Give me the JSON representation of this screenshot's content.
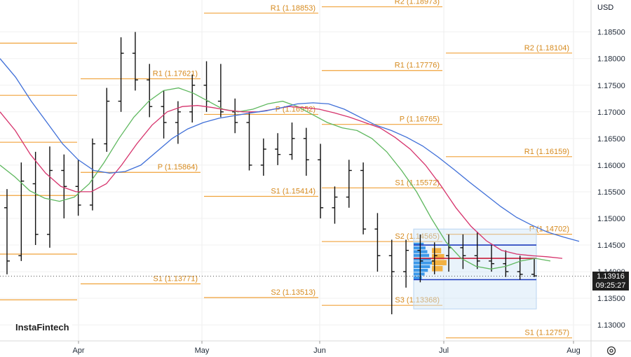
{
  "header": {
    "currency": "USD"
  },
  "watermark": "InstaFintech",
  "price_tag": {
    "price": "1.13916",
    "time": "09:25:27"
  },
  "colors": {
    "pivot": "#f0a23a",
    "pivot_text": "#d68a1e",
    "ma_fast": "#5fb85f",
    "ma_mid": "#d6336c",
    "ma_slow": "#3f6fd8",
    "bars": "#111111",
    "profile": "#1e88e5",
    "profile_poc": "#f5a623",
    "range_box": "#cfe4f7"
  },
  "chart_data": {
    "type": "ohlc",
    "x_axis": {
      "labels": [
        "Apr",
        "May",
        "Jun",
        "Jul",
        "Aug"
      ]
    },
    "y_axis": {
      "range": [
        1.127,
        1.191
      ],
      "ticks": [
        "1.18500",
        "1.18000",
        "1.17500",
        "1.17000",
        "1.16500",
        "1.16000",
        "1.15500",
        "1.15000",
        "1.14500",
        "1.14000",
        "1.13500",
        "1.13000"
      ],
      "tick_values": [
        1.185,
        1.18,
        1.175,
        1.17,
        1.165,
        1.16,
        1.155,
        1.15,
        1.145,
        1.14,
        1.135,
        1.13
      ]
    },
    "last_price": 1.13916,
    "pivot_levels": [
      {
        "period": "Mar",
        "segments": [
          {
            "label": "",
            "value": 1.1829
          },
          {
            "label": "",
            "value": 1.1731
          },
          {
            "label": "",
            "value": 1.1643
          },
          {
            "label": "",
            "value": 1.1543
          },
          {
            "label": "",
            "value": 1.1433
          },
          {
            "label": "",
            "value": 1.1347
          }
        ]
      },
      {
        "period": "Apr",
        "segments": [
          {
            "label": "R1 (1.17621)",
            "value": 1.17621
          },
          {
            "label": "P (1.15864)",
            "value": 1.15864
          },
          {
            "label": "S1 (1.13771)",
            "value": 1.13771
          }
        ]
      },
      {
        "period": "May",
        "segments": [
          {
            "label": "R1 (1.18853)",
            "value": 1.18853
          },
          {
            "label": "P (1.16952)",
            "value": 1.16952
          },
          {
            "label": "S1 (1.15414)",
            "value": 1.15414
          },
          {
            "label": "S2 (1.13513)",
            "value": 1.13513
          }
        ]
      },
      {
        "period": "Jun",
        "segments": [
          {
            "label": "R2 (1.18973)",
            "value": 1.18973
          },
          {
            "label": "R1 (1.17776)",
            "value": 1.17776
          },
          {
            "label": "P (1.16765)",
            "value": 1.16765
          },
          {
            "label": "S1 (1.15572)",
            "value": 1.15572
          },
          {
            "label": "S2 (1.14565)",
            "value": 1.14565
          },
          {
            "label": "S3 (1.13368)",
            "value": 1.13368
          }
        ]
      },
      {
        "period": "Jul",
        "segments": [
          {
            "label": "R2 (1.18104)",
            "value": 1.18104
          },
          {
            "label": "R1 (1.16159)",
            "value": 1.16159
          },
          {
            "label": "P (1.14702)",
            "value": 1.14702
          },
          {
            "label": "S1 (1.12757)",
            "value": 1.12757
          }
        ]
      }
    ],
    "series": [
      {
        "values": [
          1.16,
          1.1578,
          1.1552,
          1.1538,
          1.1532,
          1.154,
          1.1565,
          1.1605,
          1.165,
          1.169,
          1.172,
          1.174,
          1.1745,
          1.1735,
          1.172,
          1.1705,
          1.17,
          1.1705,
          1.1715,
          1.172,
          1.171,
          1.1695,
          1.168,
          1.167,
          1.1665,
          1.165,
          1.1625,
          1.159,
          1.155,
          1.15,
          1.1455,
          1.1425,
          1.141,
          1.1405,
          1.141,
          1.142,
          1.1425,
          1.142
        ]
      },
      {
        "values": [
          1.17,
          1.1665,
          1.162,
          1.1585,
          1.156,
          1.155,
          1.155,
          1.1565,
          1.16,
          1.164,
          1.1675,
          1.17,
          1.171,
          1.1712,
          1.1708,
          1.1703,
          1.17,
          1.17,
          1.1705,
          1.171,
          1.1708,
          1.1705,
          1.1698,
          1.169,
          1.168,
          1.167,
          1.1652,
          1.163,
          1.16,
          1.1562,
          1.152,
          1.1485,
          1.1458,
          1.144,
          1.1433,
          1.143,
          1.1428,
          1.1425
        ]
      },
      {
        "values": [
          1.18,
          1.1765,
          1.172,
          1.168,
          1.164,
          1.161,
          1.159,
          1.1585,
          1.1588,
          1.16,
          1.1625,
          1.165,
          1.1668,
          1.168,
          1.1688,
          1.1693,
          1.1698,
          1.1702,
          1.1708,
          1.1715,
          1.1717,
          1.1715,
          1.1705,
          1.169,
          1.1675,
          1.1665,
          1.1652,
          1.1636,
          1.1615,
          1.1592,
          1.1568,
          1.1545,
          1.1522,
          1.1502,
          1.1487,
          1.1474,
          1.1465,
          1.1457
        ]
      }
    ],
    "ohlc_weeks": [
      [
        1.152,
        1.1555,
        1.1395,
        1.142
      ],
      [
        1.143,
        1.1605,
        1.142,
        1.157
      ],
      [
        1.1565,
        1.1625,
        1.145,
        1.147
      ],
      [
        1.147,
        1.1635,
        1.1445,
        1.159
      ],
      [
        1.159,
        1.162,
        1.15,
        1.156
      ],
      [
        1.156,
        1.161,
        1.1505,
        1.1525
      ],
      [
        1.1525,
        1.165,
        1.1515,
        1.164
      ],
      [
        1.164,
        1.1745,
        1.1625,
        1.172
      ],
      [
        1.172,
        1.184,
        1.17,
        1.181
      ],
      [
        1.181,
        1.185,
        1.174,
        1.176
      ],
      [
        1.176,
        1.179,
        1.169,
        1.171
      ],
      [
        1.171,
        1.174,
        1.165,
        1.168
      ],
      [
        1.168,
        1.172,
        1.164,
        1.17
      ],
      [
        1.17,
        1.177,
        1.168,
        1.175
      ],
      [
        1.175,
        1.1795,
        1.17,
        1.172
      ],
      [
        1.172,
        1.179,
        1.169,
        1.17
      ],
      [
        1.17,
        1.1725,
        1.166,
        1.168
      ],
      [
        1.168,
        1.17,
        1.159,
        1.16
      ],
      [
        1.16,
        1.165,
        1.158,
        1.163
      ],
      [
        1.163,
        1.166,
        1.16,
        1.162
      ],
      [
        1.162,
        1.168,
        1.161,
        1.165
      ],
      [
        1.165,
        1.167,
        1.158,
        1.161
      ],
      [
        1.161,
        1.164,
        1.15,
        1.152
      ],
      [
        1.152,
        1.156,
        1.149,
        1.154
      ],
      [
        1.154,
        1.161,
        1.152,
        1.159
      ],
      [
        1.159,
        1.1605,
        1.147,
        1.148
      ],
      [
        1.148,
        1.151,
        1.14,
        1.143
      ],
      [
        1.143,
        1.146,
        1.132,
        1.14
      ],
      [
        1.14,
        1.146,
        1.137,
        1.144
      ],
      [
        1.144,
        1.147,
        1.138,
        1.142
      ],
      [
        1.142,
        1.1455,
        1.1395,
        1.143
      ],
      [
        1.143,
        1.147,
        1.14,
        1.1445
      ],
      [
        1.1445,
        1.147,
        1.1405,
        1.143
      ],
      [
        1.143,
        1.1475,
        1.1405,
        1.142
      ],
      [
        1.142,
        1.145,
        1.14,
        1.1415
      ],
      [
        1.1415,
        1.144,
        1.139,
        1.14
      ],
      [
        1.14,
        1.143,
        1.1385,
        1.1395
      ],
      [
        1.1395,
        1.1425,
        1.139,
        1.1392
      ]
    ],
    "volume_profile": {
      "rows": [
        0.55,
        0.65,
        0.75,
        0.85,
        0.95,
        1.0,
        0.9,
        0.78,
        0.6,
        0.45
      ],
      "poc_rows": [
        0.6,
        0.8,
        0.95,
        0.7
      ],
      "box": {
        "x_from": "late Jun",
        "x_to": "late Jul",
        "y_from": 1.133,
        "y_to": 1.148
      },
      "value_area_high": 1.145,
      "value_area_low": 1.1385,
      "poc": 1.1425
    }
  }
}
